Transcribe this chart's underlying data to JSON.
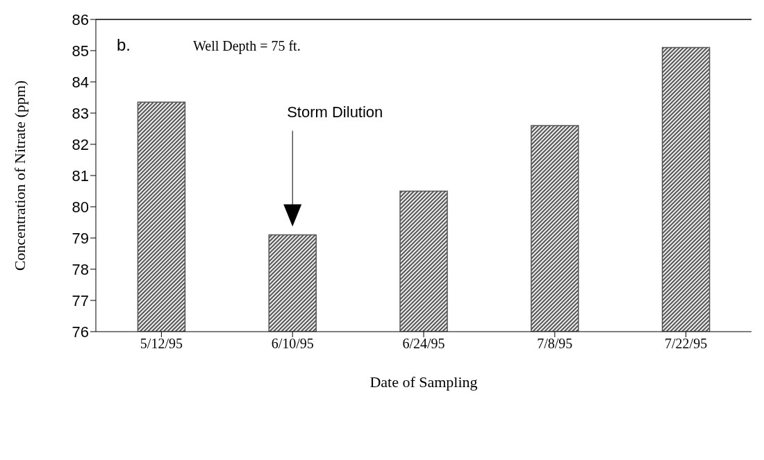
{
  "chart_data": {
    "type": "bar",
    "xlabel": "Date of Sampling",
    "ylabel": "Concentration of Nitrate (ppm)",
    "categories": [
      "5/12/95",
      "6/10/95",
      "6/24/95",
      "7/8/95",
      "7/22/95"
    ],
    "values": [
      83.35,
      79.1,
      80.5,
      82.6,
      85.1
    ],
    "color": "#555555",
    "ylim": [
      76,
      86
    ],
    "yticks": [
      76,
      77,
      78,
      79,
      80,
      81,
      82,
      83,
      84,
      85,
      86
    ],
    "grid": false,
    "legend": false,
    "annotations": [
      "b.",
      "Well Depth = 75 ft.",
      "Storm Dilution"
    ]
  }
}
